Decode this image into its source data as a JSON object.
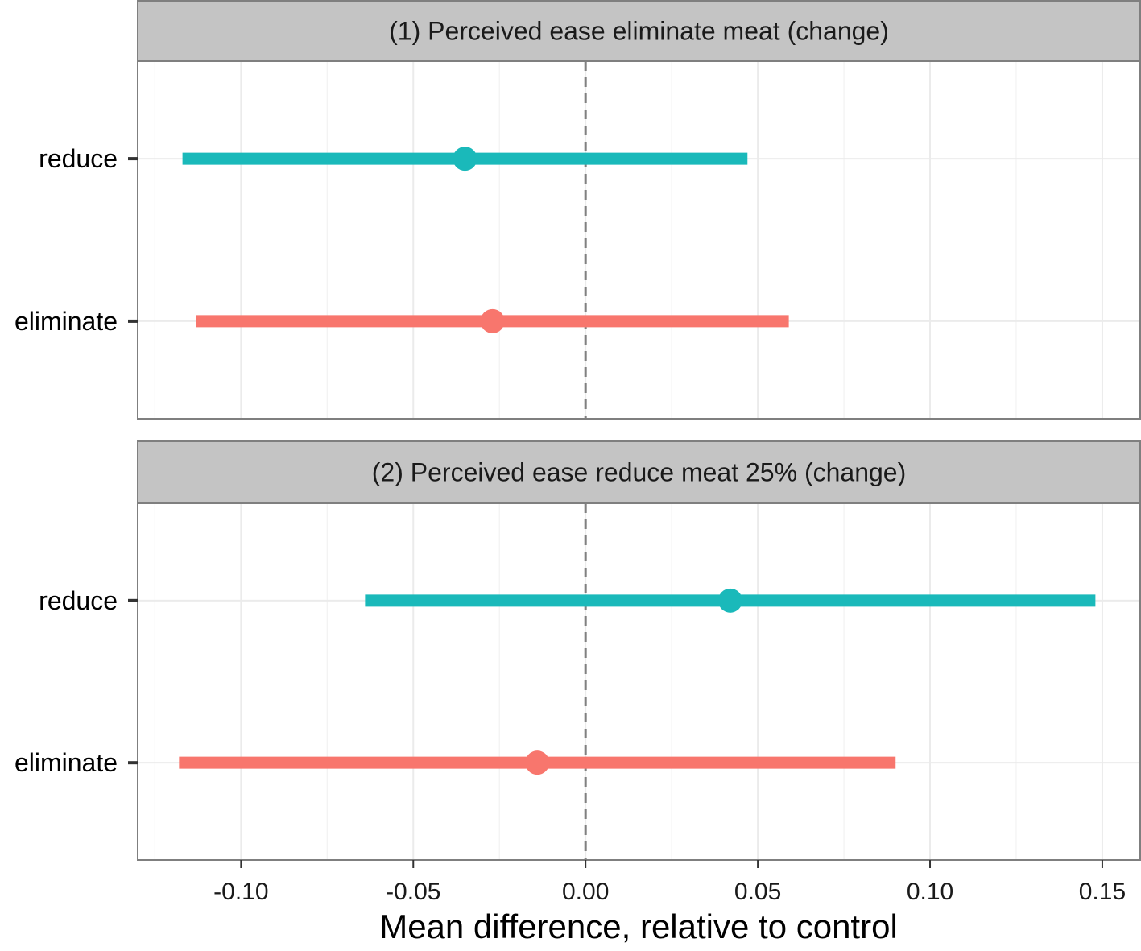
{
  "chart_data": {
    "type": "forest",
    "xlabel": "Mean difference, relative to control",
    "xlim": [
      -0.13,
      0.161
    ],
    "xticks": [
      -0.1,
      -0.05,
      0.0,
      0.05,
      0.1,
      0.15
    ],
    "xtick_labels": [
      "-0.10",
      "-0.05",
      "0.00",
      "0.05",
      "0.10",
      "0.15"
    ],
    "categories": [
      "reduce",
      "eliminate"
    ],
    "reference_line": 0,
    "colors": {
      "eliminate": "#F8766D",
      "reduce": "#1AB9BA"
    },
    "grid": true,
    "panels": [
      {
        "title": "(1) Perceived ease eliminate meat (change)",
        "points": [
          {
            "group": "reduce",
            "estimate": -0.035,
            "lower": -0.117,
            "upper": 0.047
          },
          {
            "group": "eliminate",
            "estimate": -0.027,
            "lower": -0.113,
            "upper": 0.059
          }
        ]
      },
      {
        "title": "(2) Perceived ease reduce meat 25% (change)",
        "points": [
          {
            "group": "reduce",
            "estimate": 0.042,
            "lower": -0.064,
            "upper": 0.148
          },
          {
            "group": "eliminate",
            "estimate": -0.014,
            "lower": -0.118,
            "upper": 0.09
          }
        ]
      }
    ]
  }
}
